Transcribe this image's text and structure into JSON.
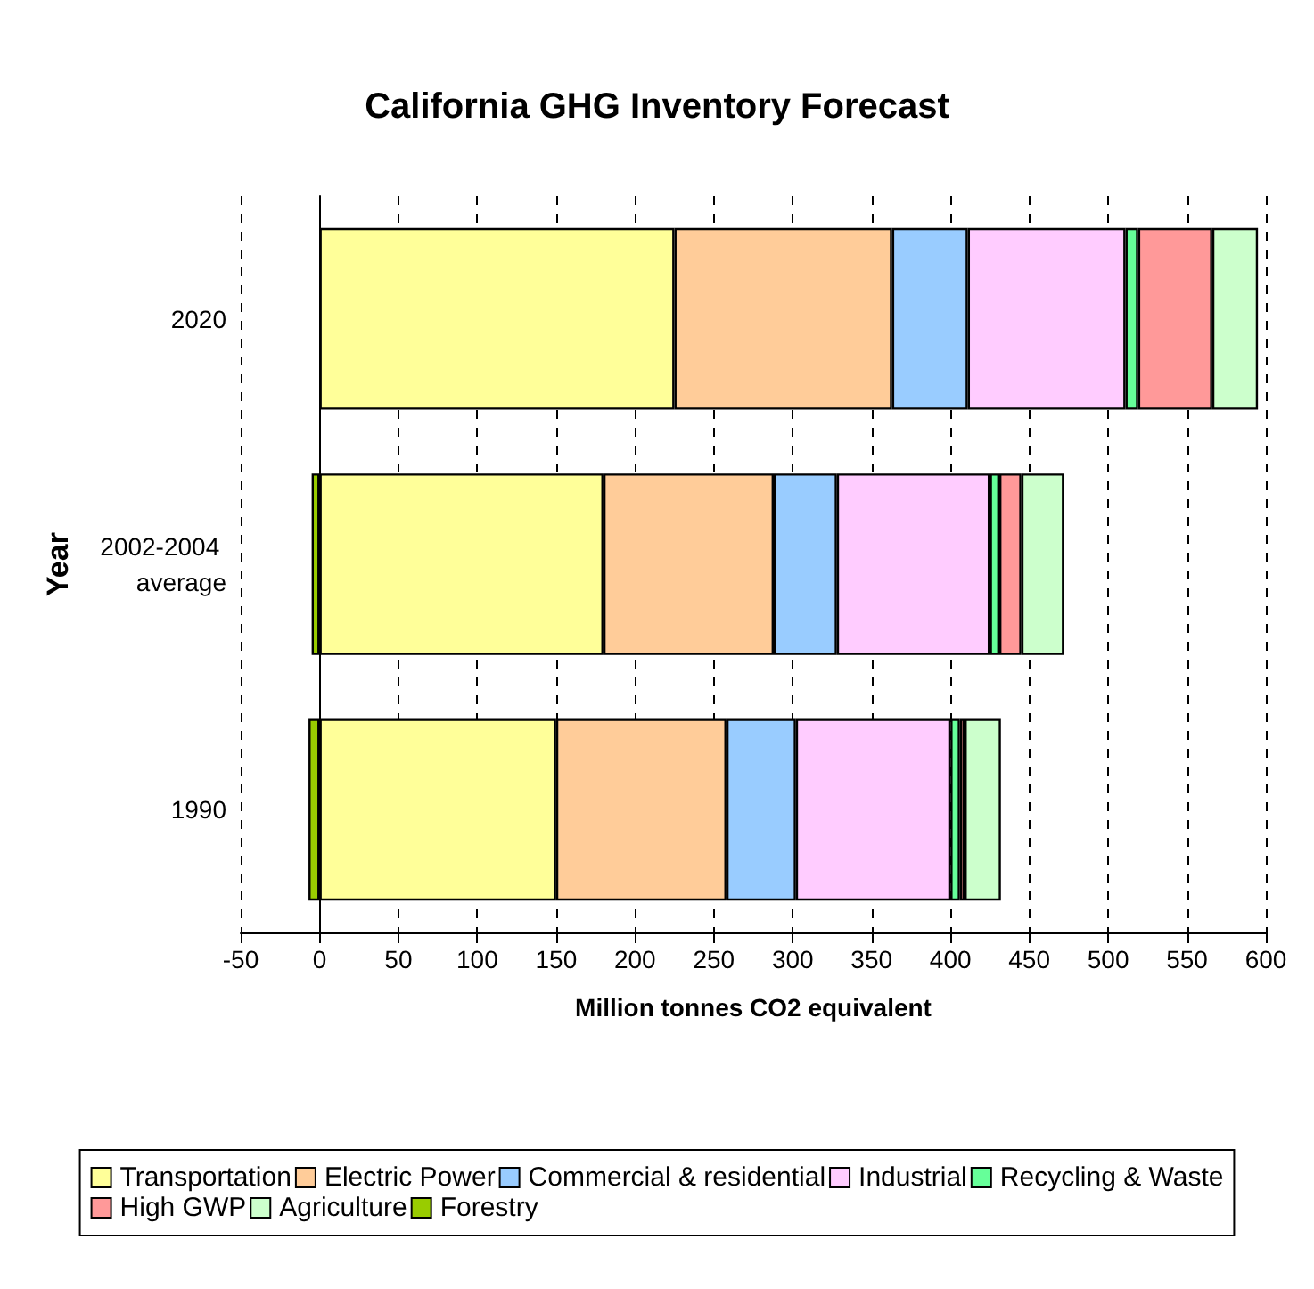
{
  "chart_data": {
    "type": "bar",
    "orientation": "horizontal",
    "stacked": true,
    "title": "California GHG Inventory Forecast",
    "xlabel": "Million tonnes CO2 equivalent",
    "ylabel": "Year",
    "categories": [
      "2020",
      "2002-2004 average",
      "1990"
    ],
    "series": [
      {
        "name": "Transportation",
        "color": "#ffff99",
        "values": [
          225,
          180,
          150
        ]
      },
      {
        "name": "Electric Power",
        "color": "#ffcc99",
        "values": [
          138,
          108,
          108
        ]
      },
      {
        "name": "Commercial & residential",
        "color": "#99ccff",
        "values": [
          48,
          40,
          44
        ]
      },
      {
        "name": "Industrial",
        "color": "#ffccff",
        "values": [
          100,
          97,
          98
        ]
      },
      {
        "name": "Recycling & Waste",
        "color": "#66ff99",
        "values": [
          8,
          6,
          6
        ]
      },
      {
        "name": "High GWP",
        "color": "#ff9999",
        "values": [
          47,
          14,
          3
        ]
      },
      {
        "name": "Agriculture",
        "color": "#ccffcc",
        "values": [
          29,
          27,
          23
        ]
      },
      {
        "name": "Forestry",
        "color": "#99cc00",
        "values": [
          null,
          -5,
          -7
        ]
      }
    ],
    "xlim": [
      -50,
      600
    ],
    "xticks": [
      -50,
      0,
      50,
      100,
      150,
      200,
      250,
      300,
      350,
      400,
      450,
      500,
      550,
      600
    ],
    "grid": "x",
    "legend": "bottom"
  }
}
